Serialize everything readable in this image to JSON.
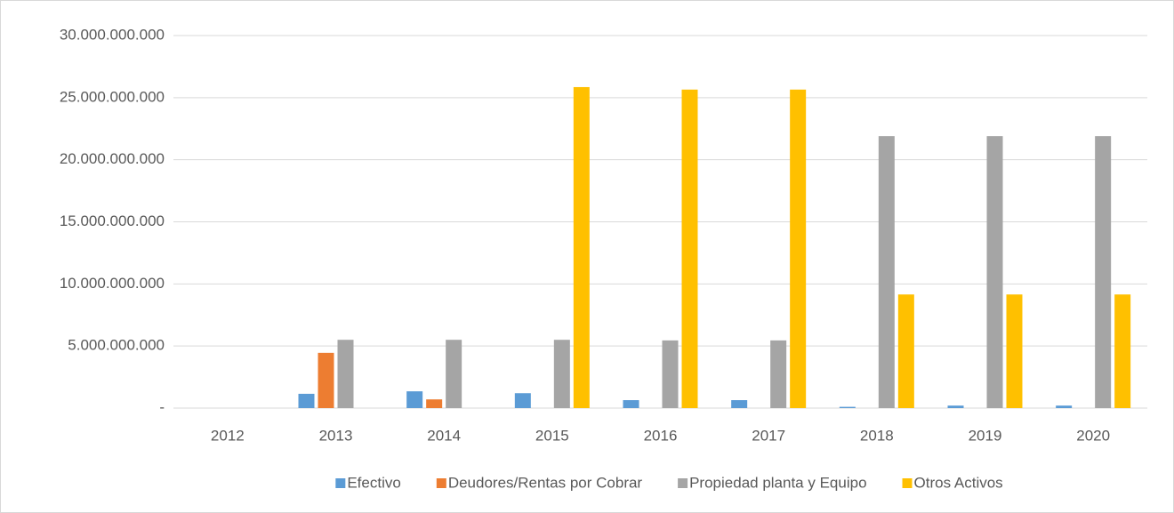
{
  "chart_data": {
    "type": "bar",
    "categories": [
      "2012",
      "2013",
      "2014",
      "2015",
      "2016",
      "2017",
      "2018",
      "2019",
      "2020"
    ],
    "series": [
      {
        "name": "Efectivo",
        "color": "#5b9bd5",
        "values": [
          0,
          1150000000,
          1350000000,
          1200000000,
          640000000,
          640000000,
          100000000,
          200000000,
          200000000
        ]
      },
      {
        "name": "Deudores/Rentas por Cobrar",
        "color": "#ed7d31",
        "values": [
          0,
          4450000000,
          700000000,
          0,
          0,
          0,
          0,
          0,
          0
        ]
      },
      {
        "name": "Propiedad planta y Equipo",
        "color": "#a5a5a5",
        "values": [
          0,
          5500000000,
          5500000000,
          5500000000,
          5450000000,
          5450000000,
          21900000000,
          21900000000,
          21900000000
        ]
      },
      {
        "name": "Otros Activos",
        "color": "#ffc000",
        "values": [
          0,
          0,
          0,
          25850000000,
          25650000000,
          25650000000,
          9150000000,
          9150000000,
          9150000000
        ]
      }
    ],
    "ylim": [
      0,
      30000000000
    ],
    "yticks": [
      {
        "value": 0,
        "label": "-"
      },
      {
        "value": 5000000000,
        "label": "5.000.000.000"
      },
      {
        "value": 10000000000,
        "label": "10.000.000.000"
      },
      {
        "value": 15000000000,
        "label": "15.000.000.000"
      },
      {
        "value": 20000000000,
        "label": "20.000.000.000"
      },
      {
        "value": 25000000000,
        "label": "25.000.000.000"
      },
      {
        "value": 30000000000,
        "label": "30.000.000.000"
      }
    ],
    "grid": true,
    "legend": "bottom"
  }
}
